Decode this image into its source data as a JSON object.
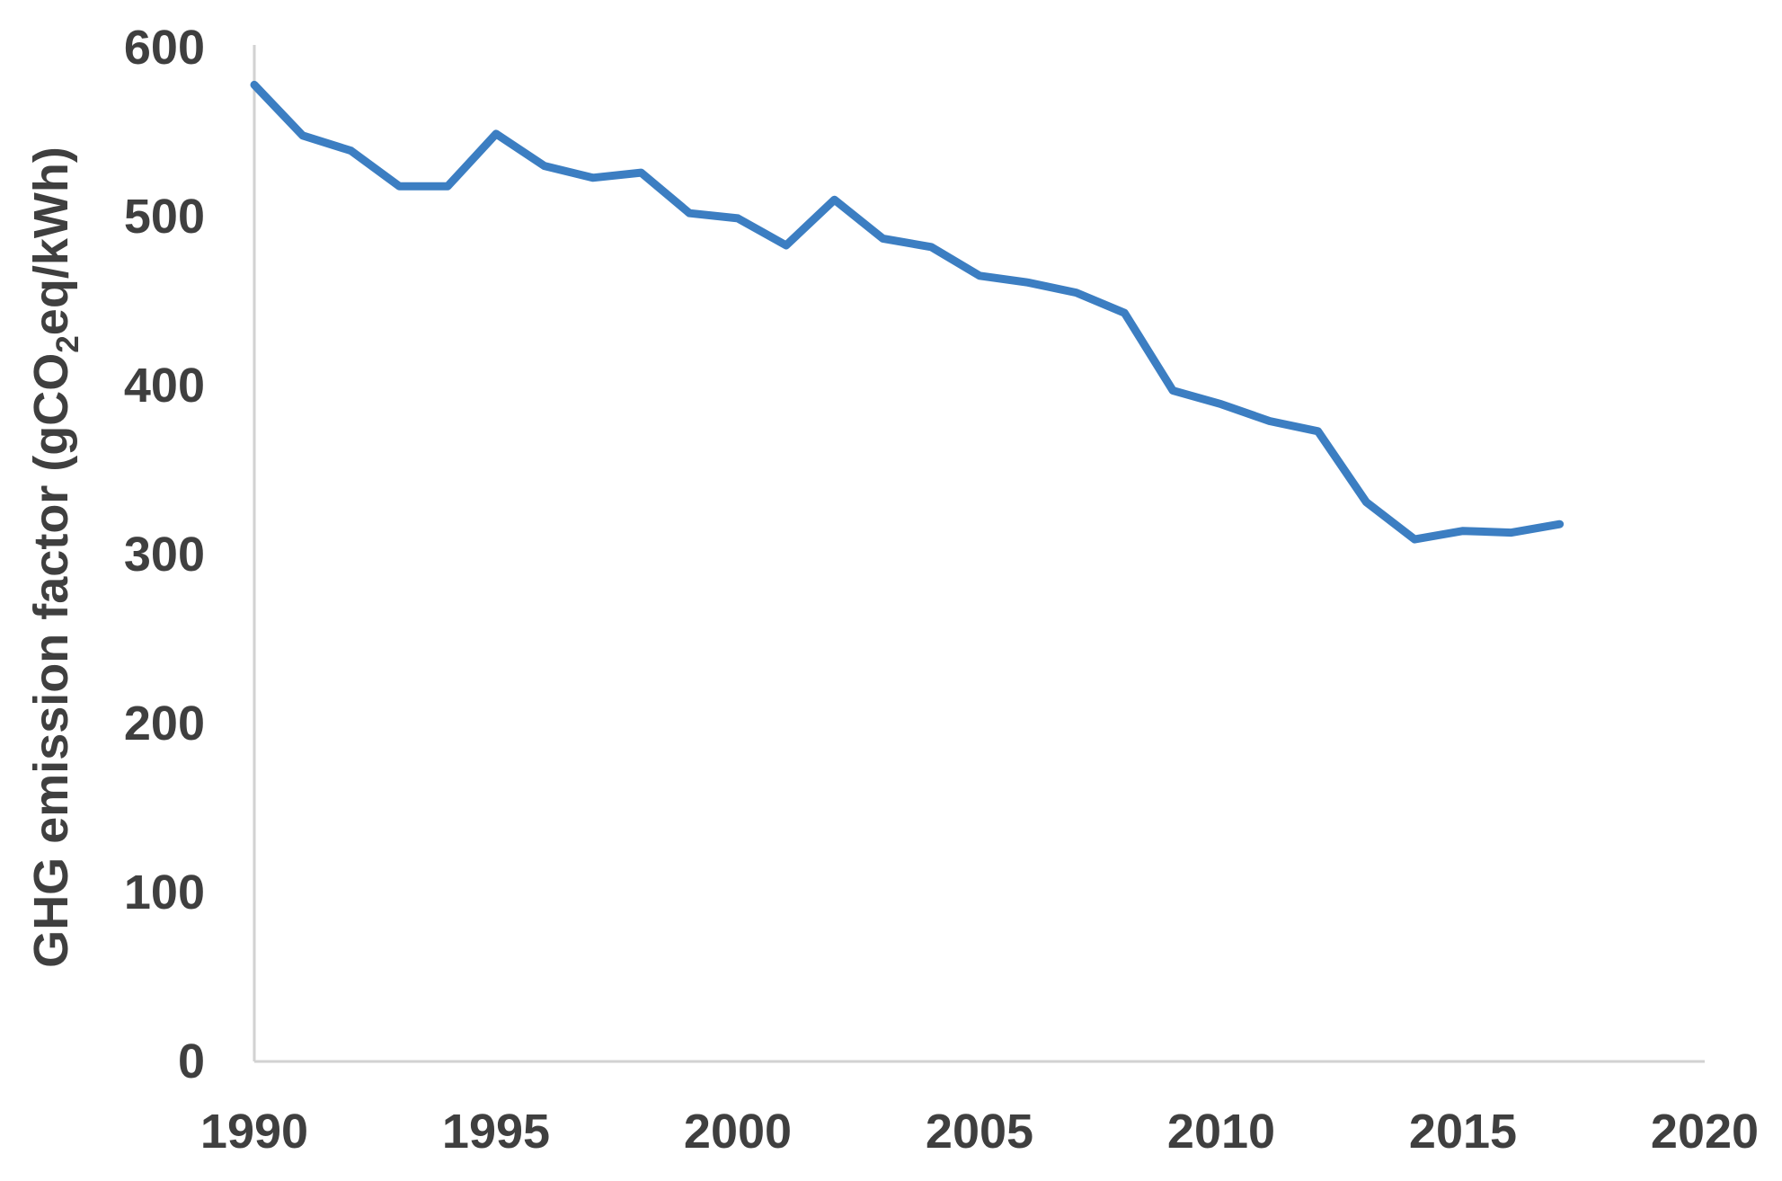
{
  "chart_data": {
    "type": "line",
    "title": "",
    "xlabel": "",
    "ylabel_parts": [
      "GHG emission factor (gCO",
      "2",
      "eq/kWh)"
    ],
    "x": [
      1990,
      1991,
      1992,
      1993,
      1994,
      1995,
      1996,
      1997,
      1998,
      1999,
      2000,
      2001,
      2002,
      2003,
      2004,
      2005,
      2006,
      2007,
      2008,
      2009,
      2010,
      2011,
      2012,
      2013,
      2014,
      2015,
      2016,
      2017
    ],
    "series": [
      {
        "name": "GHG emission factor",
        "values": [
          578,
          548,
          539,
          518,
          518,
          549,
          530,
          523,
          526,
          502,
          499,
          483,
          510,
          487,
          482,
          465,
          461,
          455,
          443,
          397,
          389,
          379,
          373,
          331,
          309,
          314,
          313,
          318
        ]
      }
    ],
    "xlim": [
      1990,
      2020
    ],
    "ylim": [
      0,
      600
    ],
    "x_ticks": [
      "1990",
      "1995",
      "2000",
      "2005",
      "2010",
      "2015",
      "2020"
    ],
    "x_tick_values": [
      1990,
      1995,
      2000,
      2005,
      2010,
      2015,
      2020
    ],
    "y_ticks": [
      "0",
      "100",
      "200",
      "300",
      "400",
      "500",
      "600"
    ],
    "y_tick_values": [
      0,
      100,
      200,
      300,
      400,
      500,
      600
    ],
    "grid": "off",
    "legend": "none",
    "line_color": "#3c7ec2",
    "axis_color": "#d2d2d2",
    "text_color": "#3f3f3f",
    "background_color": "#ffffff"
  }
}
